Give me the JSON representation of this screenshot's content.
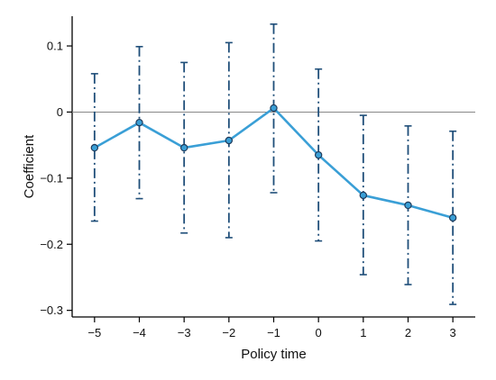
{
  "chart_data": {
    "type": "line",
    "title": "",
    "xlabel": "Policy time",
    "ylabel": "Coefficient",
    "x": [
      -5,
      -4,
      -3,
      -2,
      -1,
      0,
      1,
      2,
      3
    ],
    "x_tick_labels": [
      "−5",
      "−4",
      "−3",
      "−2",
      "−1",
      "0",
      "1",
      "2",
      "3"
    ],
    "xlim": [
      -5.5,
      3.5
    ],
    "ylim": [
      -0.31,
      0.145
    ],
    "y_ticks": [
      0.1,
      0,
      -0.1,
      -0.2,
      -0.3
    ],
    "y_tick_labels": [
      "0.1",
      "0",
      "−0.1",
      "−0.2",
      "−0.3"
    ],
    "reference_line": 0,
    "grid": false,
    "series": [
      {
        "values": [
          -0.054,
          -0.016,
          -0.054,
          -0.043,
          0.006,
          -0.065,
          -0.126,
          -0.141,
          -0.16
        ],
        "ci_lower": [
          -0.165,
          -0.131,
          -0.183,
          -0.19,
          -0.122,
          -0.195,
          -0.246,
          -0.261,
          -0.291
        ],
        "ci_upper": [
          0.058,
          0.099,
          0.075,
          0.105,
          0.133,
          0.065,
          -0.005,
          -0.021,
          -0.029
        ]
      }
    ],
    "colors": {
      "line": "#3a9fd6",
      "marker_edge": "#1f3a5a",
      "error_bar": "#1f4e79",
      "reference": "#888888",
      "axis": "#000000"
    }
  }
}
